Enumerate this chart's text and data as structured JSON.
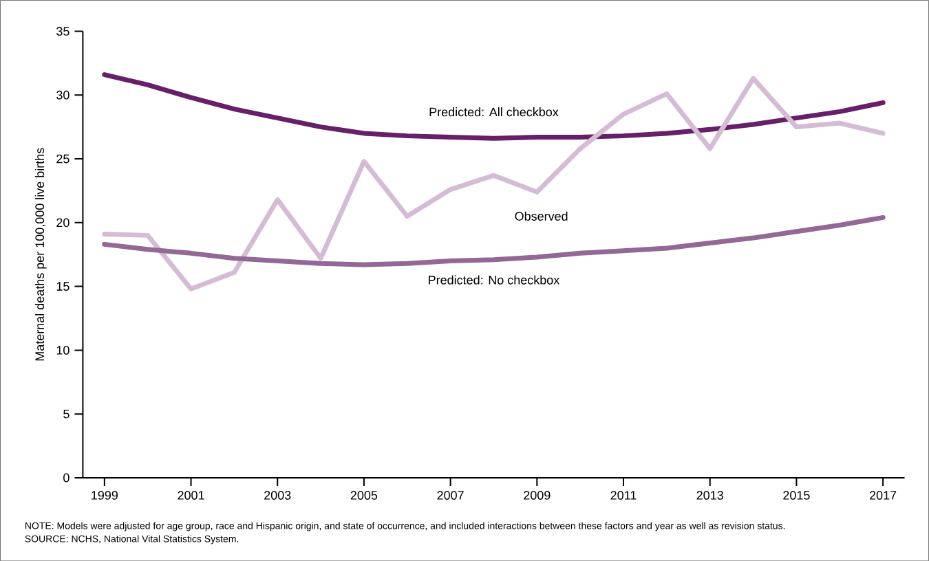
{
  "chart_data": {
    "type": "line",
    "ylabel": "Maternal deaths per 100,000 live births",
    "x": [
      1999,
      2000,
      2001,
      2002,
      2003,
      2004,
      2005,
      2006,
      2007,
      2008,
      2009,
      2010,
      2011,
      2012,
      2013,
      2014,
      2015,
      2016,
      2017
    ],
    "xlim": [
      1998.5,
      2017.5
    ],
    "xticks": [
      1999,
      2001,
      2003,
      2005,
      2007,
      2009,
      2011,
      2013,
      2015,
      2017
    ],
    "ylim": [
      0,
      35
    ],
    "yticks": [
      0,
      5,
      10,
      15,
      20,
      25,
      30,
      35
    ],
    "series": [
      {
        "name": "Predicted: All checkbox",
        "color": "#66206a",
        "values": [
          31.6,
          30.8,
          29.8,
          28.9,
          28.2,
          27.5,
          27.0,
          26.8,
          26.7,
          26.6,
          26.7,
          26.7,
          26.8,
          27.0,
          27.3,
          27.7,
          28.2,
          28.7,
          29.4
        ]
      },
      {
        "name": "Observed",
        "color": "#d4bdd4",
        "values": [
          19.1,
          19.0,
          14.8,
          16.1,
          21.8,
          17.2,
          24.8,
          20.5,
          22.6,
          23.7,
          22.4,
          25.8,
          28.5,
          30.1,
          25.8,
          31.3,
          27.5,
          27.8,
          27.0
        ]
      },
      {
        "name": "Predicted: No checkbox",
        "color": "#936896",
        "values": [
          18.3,
          17.9,
          17.6,
          17.2,
          17.0,
          16.8,
          16.7,
          16.8,
          17.0,
          17.1,
          17.3,
          17.6,
          17.8,
          18.0,
          18.4,
          18.8,
          19.3,
          19.8,
          20.4
        ]
      }
    ],
    "annotations": [
      "NOTE: Models were adjusted for age group, race and Hispanic origin, and state of occurrence, and included interactions between these factors and year as well as revision status.",
      "SOURCE: NCHS, National Vital Statistics System."
    ]
  }
}
